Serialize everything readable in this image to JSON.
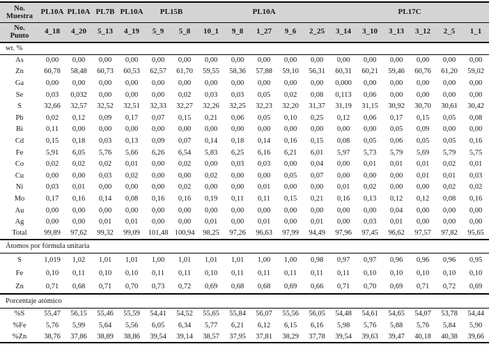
{
  "table": {
    "header": {
      "muestra_label": "No.\nMuestra",
      "punto_label": "No.\nPunto",
      "sample_groups": [
        {
          "label": "PL10A",
          "span": 1
        },
        {
          "label": "PL10A",
          "span": 1
        },
        {
          "label": "PL7B",
          "span": 1
        },
        {
          "label": "PL10A",
          "span": 1
        },
        {
          "label": "PL15B",
          "span": 2
        },
        {
          "label": "PL10A",
          "span": 5
        },
        {
          "label": "PL17C",
          "span": 6
        }
      ],
      "points": [
        "4_18",
        "4_20",
        "5_13",
        "4_19",
        "5_9",
        "5_8",
        "10_1",
        "9_8",
        "1_27",
        "9_6",
        "2_25",
        "3_14",
        "3_10",
        "3_13",
        "3_12",
        "2_5",
        "1_1"
      ]
    },
    "sections": [
      {
        "label": "wt. %",
        "rows": [
          {
            "label": "As",
            "values": [
              "0,00",
              "0,00",
              "0,00",
              "0,00",
              "0,00",
              "0,00",
              "0,00",
              "0,00",
              "0,00",
              "0,00",
              "0,00",
              "0,00",
              "0,00",
              "0,00",
              "0,00",
              "0,00",
              "0,00"
            ]
          },
          {
            "label": "Zn",
            "values": [
              "60,78",
              "58,48",
              "60,73",
              "60,53",
              "62,57",
              "61,70",
              "59,55",
              "58,36",
              "57,88",
              "59,10",
              "56,31",
              "60,31",
              "60,21",
              "59,46",
              "60,76",
              "61,20",
              "59,02"
            ]
          },
          {
            "label": "Ga",
            "values": [
              "0,00",
              "0,00",
              "0,00",
              "0,00",
              "0,00",
              "0,00",
              "0,00",
              "0,00",
              "0,00",
              "0,00",
              "0,00",
              "0,000",
              "0,00",
              "0,00",
              "0,00",
              "0,00",
              "0,00"
            ]
          },
          {
            "label": "Se",
            "values": [
              "0,03",
              "0,032",
              "0,00",
              "0,00",
              "0,00",
              "0,02",
              "0,03",
              "0,03",
              "0,05",
              "0,02",
              "0,08",
              "0,113",
              "0,06",
              "0,00",
              "0,00",
              "0,00",
              "0,00"
            ]
          },
          {
            "label": "S",
            "values": [
              "32,66",
              "32,57",
              "32,52",
              "32,51",
              "32,33",
              "32,27",
              "32,26",
              "32,25",
              "32,23",
              "32,20",
              "31,37",
              "31,19",
              "31,15",
              "30,92",
              "30,70",
              "30,61",
              "30,42"
            ]
          },
          {
            "label": "Pb",
            "values": [
              "0,02",
              "0,12",
              "0,09",
              "0,17",
              "0,07",
              "0,15",
              "0,21",
              "0,06",
              "0,05",
              "0,10",
              "0,25",
              "0,12",
              "0,06",
              "0,17",
              "0,15",
              "0,05",
              "0,08"
            ]
          },
          {
            "label": "Bi",
            "values": [
              "0,11",
              "0,00",
              "0,00",
              "0,00",
              "0,00",
              "0,00",
              "0,00",
              "0,00",
              "0,00",
              "0,00",
              "0,00",
              "0,00",
              "0,00",
              "0,05",
              "0,09",
              "0,00",
              "0,00"
            ]
          },
          {
            "label": "Cd",
            "values": [
              "0,15",
              "0,18",
              "0,03",
              "0,13",
              "0,09",
              "0,07",
              "0,14",
              "0,18",
              "0,14",
              "0,16",
              "0,15",
              "0,08",
              "0,05",
              "0,06",
              "0,05",
              "0,05",
              "0,16"
            ]
          },
          {
            "label": "Fe",
            "values": [
              "5,91",
              "6,05",
              "5,76",
              "5,66",
              "6,26",
              "6,54",
              "5,83",
              "6,25",
              "6,16",
              "6,21",
              "6,01",
              "5,97",
              "5,73",
              "5,79",
              "5,69",
              "5,79",
              "5,75"
            ]
          },
          {
            "label": "Co",
            "values": [
              "0,02",
              "0,02",
              "0,02",
              "0,01",
              "0,00",
              "0,02",
              "0,00",
              "0,03",
              "0,03",
              "0,00",
              "0,04",
              "0,00",
              "0,01",
              "0,01",
              "0,01",
              "0,02",
              "0,01"
            ]
          },
          {
            "label": "Cu",
            "values": [
              "0,00",
              "0,00",
              "0,03",
              "0,02",
              "0,00",
              "0,00",
              "0,02",
              "0,00",
              "0,00",
              "0,05",
              "0,07",
              "0,00",
              "0,00",
              "0,00",
              "0,01",
              "0,01",
              "0,03"
            ]
          },
          {
            "label": "Ni",
            "values": [
              "0,03",
              "0,01",
              "0,00",
              "0,00",
              "0,00",
              "0,02",
              "0,00",
              "0,00",
              "0,01",
              "0,00",
              "0,00",
              "0,01",
              "0,02",
              "0,00",
              "0,00",
              "0,02",
              "0,02"
            ]
          },
          {
            "label": "Mo",
            "values": [
              "0,17",
              "0,16",
              "0,14",
              "0,08",
              "0,16",
              "0,16",
              "0,19",
              "0,11",
              "0,11",
              "0,15",
              "0,21",
              "0,16",
              "0,13",
              "0,12",
              "0,12",
              "0,08",
              "0,16"
            ]
          },
          {
            "label": "Au",
            "values": [
              "0,00",
              "0,00",
              "0,00",
              "0,00",
              "0,00",
              "0,00",
              "0,00",
              "0,00",
              "0,00",
              "0,00",
              "0,00",
              "0,00",
              "0,00",
              "0,04",
              "0,00",
              "0,00",
              "0,00"
            ]
          },
          {
            "label": "Ag",
            "values": [
              "0,00",
              "0,00",
              "0,01",
              "0,01",
              "0,00",
              "0,00",
              "0,01",
              "0,00",
              "0,01",
              "0,00",
              "0,01",
              "0,00",
              "0,03",
              "0,01",
              "0,00",
              "0,00",
              "0,00"
            ]
          },
          {
            "label": "Total",
            "values": [
              "99,89",
              "97,62",
              "99,32",
              "99,09",
              "101,48",
              "100,94",
              "98,25",
              "97,26",
              "96,63",
              "97,99",
              "94,49",
              "97,96",
              "97,45",
              "96,62",
              "97,57",
              "97,82",
              "95,65"
            ]
          }
        ]
      },
      {
        "label": "Átomos por fórmula unitaria",
        "rows": [
          {
            "label": "S",
            "values": [
              "1,019",
              "1,02",
              "1,01",
              "1,01",
              "1,00",
              "1,01",
              "1,01",
              "1,01",
              "1,00",
              "1,00",
              "0,98",
              "0,97",
              "0,97",
              "0,96",
              "0,96",
              "0,96",
              "0,95"
            ]
          },
          {
            "label": "Fe",
            "values": [
              "0,10",
              "0,11",
              "0,10",
              "0,10",
              "0,11",
              "0,11",
              "0,10",
              "0,11",
              "0,11",
              "0,11",
              "0,11",
              "0,11",
              "0,10",
              "0,10",
              "0,10",
              "0,10",
              "0,10"
            ]
          },
          {
            "label": "Zn",
            "values": [
              "0,71",
              "0,68",
              "0,71",
              "0,70",
              "0,73",
              "0,72",
              "0,69",
              "0,68",
              "0,68",
              "0,69",
              "0,66",
              "0,71",
              "0,70",
              "0,69",
              "0,71",
              "0,72",
              "0,69"
            ]
          }
        ]
      },
      {
        "label": "Porcentaje atómico",
        "rows": [
          {
            "label": "%S",
            "values": [
              "55,47",
              "56,15",
              "55,46",
              "55,59",
              "54,41",
              "54,52",
              "55,65",
              "55,84",
              "56,07",
              "55,56",
              "56,05",
              "54,48",
              "54,61",
              "54,65",
              "54,07",
              "53,78",
              "54,44"
            ]
          },
          {
            "label": "%Fe",
            "values": [
              "5,76",
              "5,99",
              "5,64",
              "5,56",
              "6,05",
              "6,34",
              "5,77",
              "6,21",
              "6,12",
              "6,15",
              "6,16",
              "5,98",
              "5,76",
              "5,88",
              "5,76",
              "5,84",
              "5,90"
            ]
          },
          {
            "label": "%Zn",
            "values": [
              "38,76",
              "37,86",
              "38,89",
              "38,86",
              "39,54",
              "39,14",
              "38,57",
              "37,95",
              "37,81",
              "38,29",
              "37,78",
              "39,54",
              "39,63",
              "39,47",
              "40,18",
              "40,38",
              "39,66"
            ]
          }
        ]
      }
    ]
  }
}
